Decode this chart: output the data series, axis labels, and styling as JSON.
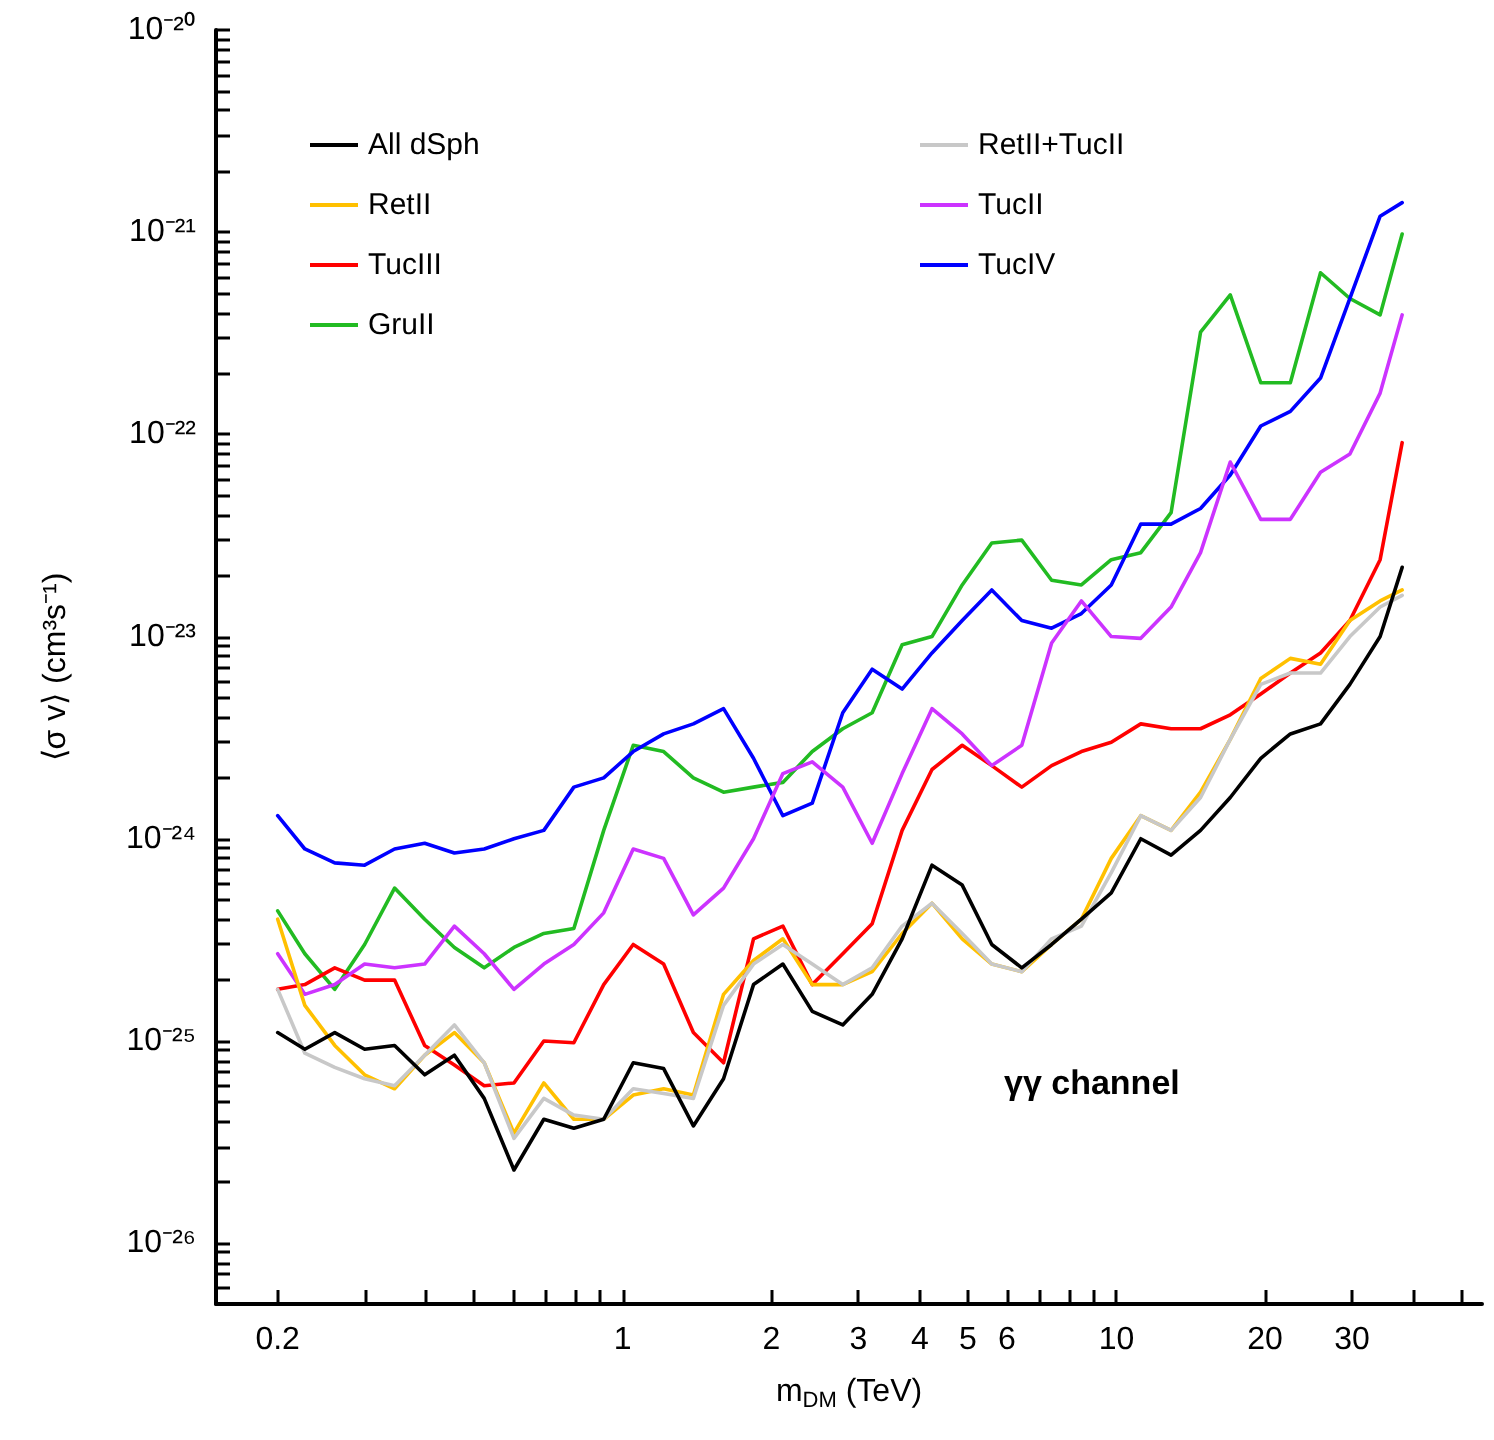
{
  "chart_data": {
    "type": "line",
    "xlabel": "m$_{DM}$ (TeV)",
    "ylabel": "⟨σ v⟩ (cm³s⁻¹)",
    "log": "xy",
    "grid": false,
    "legend": "top left",
    "annotations": [
      "γγ channel"
    ],
    "xlim": [
      0.15,
      55
    ],
    "ylim": [
      5e-27,
      1e-20
    ],
    "xticks": [
      0.2,
      {
        "value": 0.3,
        "label": null
      },
      {
        "value": 0.4,
        "label": null
      },
      {
        "value": 0.5,
        "label": null
      },
      {
        "value": 0.6,
        "label": null
      },
      {
        "value": 0.7,
        "label": null
      },
      {
        "value": 0.8,
        "label": null
      },
      {
        "value": 0.9,
        "label": null
      },
      1,
      2,
      3,
      4,
      5,
      6,
      {
        "value": 7,
        "label": null
      },
      {
        "value": 8,
        "label": null
      },
      {
        "value": 9,
        "label": null
      },
      10,
      20,
      30,
      {
        "value": 40,
        "label": null
      },
      {
        "value": 50,
        "label": null
      }
    ],
    "yticks": [
      {
        "value": 5e-27,
        "label": null
      },
      {
        "value": 6e-27,
        "label": null
      },
      {
        "value": 7e-27,
        "label": null
      },
      {
        "value": 8e-27,
        "label": null
      },
      {
        "value": 9e-27,
        "label": null
      },
      {
        "value": 1e-26,
        "label": "10⁻²⁶"
      },
      {
        "value": 2e-26,
        "label": null
      },
      {
        "value": 3e-26,
        "label": null
      },
      {
        "value": 4e-26,
        "label": null
      },
      {
        "value": 5e-26,
        "label": null
      },
      {
        "value": 6e-26,
        "label": null
      },
      {
        "value": 7e-26,
        "label": null
      },
      {
        "value": 8e-26,
        "label": null
      },
      {
        "value": 9e-26,
        "label": null
      },
      {
        "value": 1e-25,
        "label": "10⁻²⁵"
      },
      {
        "value": 2e-25,
        "label": null
      },
      {
        "value": 3e-25,
        "label": null
      },
      {
        "value": 4e-25,
        "label": null
      },
      {
        "value": 5e-25,
        "label": null
      },
      {
        "value": 6e-25,
        "label": null
      },
      {
        "value": 7e-25,
        "label": null
      },
      {
        "value": 8e-25,
        "label": null
      },
      {
        "value": 9e-25,
        "label": null
      },
      {
        "value": 1e-24,
        "label": "10⁻²⁴"
      },
      {
        "value": 2e-24,
        "label": null
      },
      {
        "value": 3e-24,
        "label": null
      },
      {
        "value": 4e-24,
        "label": null
      },
      {
        "value": 5e-24,
        "label": null
      },
      {
        "value": 6e-24,
        "label": null
      },
      {
        "value": 7e-24,
        "label": null
      },
      {
        "value": 8e-24,
        "label": null
      },
      {
        "value": 9e-24,
        "label": null
      },
      {
        "value": 1e-23,
        "label": "10⁻²³"
      },
      {
        "value": 2e-23,
        "label": null
      },
      {
        "value": 3e-23,
        "label": null
      },
      {
        "value": 4e-23,
        "label": null
      },
      {
        "value": 5e-23,
        "label": null
      },
      {
        "value": 6e-23,
        "label": null
      },
      {
        "value": 7e-23,
        "label": null
      },
      {
        "value": 8e-23,
        "label": null
      },
      {
        "value": 9e-23,
        "label": null
      },
      {
        "value": 1e-22,
        "label": "10⁻²²"
      },
      {
        "value": 2e-22,
        "label": null
      },
      {
        "value": 3e-22,
        "label": null
      },
      {
        "value": 4e-22,
        "label": null
      },
      {
        "value": 5e-22,
        "label": null
      },
      {
        "value": 6e-22,
        "label": null
      },
      {
        "value": 7e-22,
        "label": null
      },
      {
        "value": 8e-22,
        "label": null
      },
      {
        "value": 9e-22,
        "label": null
      },
      {
        "value": 1e-21,
        "label": "10⁻²¹"
      },
      {
        "value": 2e-21,
        "label": null
      },
      {
        "value": 3e-21,
        "label": null
      },
      {
        "value": 4e-21,
        "label": null
      },
      {
        "value": 5e-21,
        "label": null
      },
      {
        "value": 6e-21,
        "label": null
      },
      {
        "value": 7e-21,
        "label": null
      },
      {
        "value": 8e-21,
        "label": null
      },
      {
        "value": 9e-21,
        "label": null
      },
      {
        "value": 1e-20,
        "label": "10⁻²⁰"
      }
    ],
    "x": [
      0.2,
      0.227,
      0.261,
      0.3,
      0.345,
      0.397,
      0.456,
      0.524,
      0.602,
      0.692,
      0.796,
      0.915,
      1.05,
      1.21,
      1.39,
      1.6,
      1.84,
      2.11,
      2.42,
      2.79,
      3.2,
      3.68,
      4.23,
      4.87,
      5.59,
      6.43,
      7.39,
      8.49,
      9.76,
      11.2,
      12.9,
      14.8,
      17,
      19.6,
      22.5,
      25.9,
      29.7,
      34.2,
      37.9
    ],
    "series": [
      {
        "name": "All dSph",
        "color": "#000000",
        "values": [
          1.1e-25,
          9.1e-26,
          1.1e-25,
          9.1e-26,
          9.5e-26,
          6.8e-26,
          8.5e-26,
          5.2e-26,
          2.3e-26,
          4.1e-26,
          3.7e-26,
          4.1e-26,
          7.8e-26,
          7.3e-26,
          3.8e-26,
          6.5e-26,
          1.9e-25,
          2.4e-25,
          1.4e-25,
          1.2e-25,
          1.7e-25,
          3.2e-25,
          7.4e-25,
          5.9e-25,
          3e-25,
          2.3e-25,
          3e-25,
          4e-25,
          5.4e-25,
          1e-24,
          8.3e-25,
          1.1e-24,
          1.6e-24,
          2.5e-24,
          3.3e-24,
          3.7e-24,
          5.8e-24,
          1e-23,
          2.2e-23
        ]
      },
      {
        "name": "RetII+TucII",
        "color": "#c8c8c8",
        "values": [
          1.8e-25,
          8.7e-26,
          7.4e-26,
          6.5e-26,
          6e-26,
          8.5e-26,
          1.2e-25,
          7.8e-26,
          3.3e-26,
          5.2e-26,
          4.3e-26,
          4.1e-26,
          5.8e-26,
          5.5e-26,
          5.2e-26,
          1.5e-25,
          2.4e-25,
          3e-25,
          2.4e-25,
          1.9e-25,
          2.3e-25,
          3.7e-25,
          4.8e-25,
          3.4e-25,
          2.4e-25,
          2.2e-25,
          3.2e-25,
          3.7e-25,
          6.8e-25,
          1.3e-24,
          1.1e-24,
          1.6e-24,
          3.1e-24,
          5.8e-24,
          6.6e-24,
          6.6e-24,
          1e-23,
          1.4e-23,
          1.6e-23
        ]
      },
      {
        "name": "RetII",
        "color": "#ffc000",
        "values": [
          4e-25,
          1.5e-25,
          9.5e-26,
          6.8e-26,
          5.8e-26,
          8.5e-26,
          1.1e-25,
          7.8e-26,
          3.5e-26,
          6.2e-26,
          4.1e-26,
          4.1e-26,
          5.4e-26,
          5.8e-26,
          5.4e-26,
          1.7e-25,
          2.5e-25,
          3.2e-25,
          1.9e-25,
          1.9e-25,
          2.2e-25,
          3.4e-25,
          4.8e-25,
          3.2e-25,
          2.4e-25,
          2.2e-25,
          3e-25,
          4e-25,
          8e-25,
          1.3e-24,
          1.1e-24,
          1.7e-24,
          3.1e-24,
          6.2e-24,
          7.8e-24,
          7.3e-24,
          1.2e-23,
          1.5e-23,
          1.7e-23
        ]
      },
      {
        "name": "TucII",
        "color": "#cc33ff",
        "values": [
          2.7e-25,
          1.7e-25,
          1.9e-25,
          2.4e-25,
          2.3e-25,
          2.4e-25,
          3.7e-25,
          2.7e-25,
          1.8e-25,
          2.4e-25,
          3e-25,
          4.3e-25,
          8.9e-25,
          8e-25,
          4.2e-25,
          5.7e-25,
          1e-24,
          2.1e-24,
          2.4e-24,
          1.8e-24,
          9.5e-25,
          2.1e-24,
          4.4e-24,
          3.3e-24,
          2.3e-24,
          2.9e-24,
          9.3e-24,
          1.5e-23,
          1e-23,
          9.8e-24,
          1.4e-23,
          2.6e-23,
          7.3e-23,
          3.8e-23,
          3.8e-23,
          6.5e-23,
          8e-23,
          1.6e-22,
          3.9e-22
        ]
      },
      {
        "name": "TucIII",
        "color": "#ff0000",
        "values": [
          1.8e-25,
          1.9e-25,
          2.3e-25,
          2e-25,
          2e-25,
          9.5e-26,
          7.6e-26,
          6e-26,
          6.2e-26,
          1e-25,
          9.8e-26,
          1.9e-25,
          3e-25,
          2.4e-25,
          1.1e-25,
          7.8e-26,
          3.2e-25,
          3.7e-25,
          1.9e-25,
          2.7e-25,
          3.8e-25,
          1.1e-24,
          2.2e-24,
          2.9e-24,
          2.3e-24,
          1.8e-24,
          2.3e-24,
          2.7e-24,
          3e-24,
          3.7e-24,
          3.5e-24,
          3.5e-24,
          4.1e-24,
          5.2e-24,
          6.6e-24,
          8.3e-24,
          1.2e-23,
          2.4e-23,
          9.1e-23
        ]
      },
      {
        "name": "TucIV",
        "color": "#0000ff",
        "values": [
          1.3e-24,
          8.9e-25,
          7.6e-25,
          7.4e-25,
          8.9e-25,
          9.5e-25,
          8.5e-25,
          8.9e-25,
          1e-24,
          1.1e-24,
          1.8e-24,
          2e-24,
          2.7e-24,
          3.3e-24,
          3.7e-24,
          4.4e-24,
          2.5e-24,
          1.3e-24,
          1.5e-24,
          4.2e-24,
          6.9e-24,
          5.5e-24,
          8.3e-24,
          1.2e-23,
          1.7e-23,
          1.2e-23,
          1.1e-23,
          1.3e-23,
          1.8e-23,
          3.6e-23,
          3.6e-23,
          4.3e-23,
          6.3e-23,
          1.1e-22,
          1.3e-22,
          1.9e-22,
          4.7e-22,
          1.2e-21,
          1.4e-21
        ]
      },
      {
        "name": "GruII",
        "color": "#22bb22",
        "values": [
          4.4e-25,
          2.7e-25,
          1.8e-25,
          3e-25,
          5.7e-25,
          4e-25,
          2.9e-25,
          2.3e-25,
          2.9e-25,
          3.4e-25,
          3.6e-25,
          1.1e-24,
          2.9e-24,
          2.7e-24,
          2e-24,
          1.7e-24,
          1.8e-24,
          1.9e-24,
          2.7e-24,
          3.5e-24,
          4.2e-24,
          9.1e-24,
          1e-23,
          1.8e-23,
          2.9e-23,
          3e-23,
          1.9e-23,
          1.8e-23,
          2.4e-23,
          2.6e-23,
          4.1e-23,
          3.2e-22,
          4.9e-22,
          1.8e-22,
          1.8e-22,
          6.3e-22,
          4.7e-22,
          3.9e-22,
          9.8e-22
        ]
      }
    ]
  }
}
